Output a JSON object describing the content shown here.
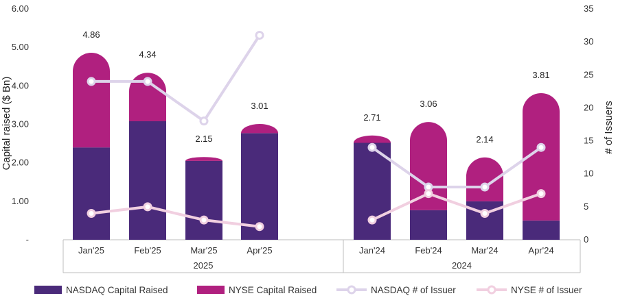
{
  "chart_data": {
    "type": "bar",
    "stacked": true,
    "groups": [
      {
        "name": "2025",
        "categories": [
          "Jan'25",
          "Feb'25",
          "Mar'25",
          "Apr'25"
        ]
      },
      {
        "name": "2024",
        "categories": [
          "Jan'24",
          "Feb'24",
          "Mar'24",
          "Apr'24"
        ]
      }
    ],
    "categories": [
      "Jan'25",
      "Feb'25",
      "Mar'25",
      "Apr'25",
      "Jan'24",
      "Feb'24",
      "Mar'24",
      "Apr'24"
    ],
    "series": [
      {
        "name": "NASDAQ Capital Raised",
        "kind": "bar",
        "axis": "left",
        "color": "#4a2a7a",
        "values": [
          2.4,
          3.08,
          2.05,
          2.77,
          2.52,
          0.77,
          1.0,
          0.5
        ]
      },
      {
        "name": "NYSE Capital Raised",
        "kind": "bar",
        "axis": "left",
        "color": "#b0207f",
        "values": [
          2.46,
          1.26,
          0.1,
          0.24,
          0.19,
          2.29,
          1.14,
          3.31
        ]
      },
      {
        "name": "NASDAQ # of Issuer",
        "kind": "line",
        "axis": "right",
        "color": "#ddd3ea",
        "values": [
          24,
          24,
          18,
          31,
          14,
          8,
          8,
          14
        ]
      },
      {
        "name": "NYSE # of Issuer",
        "kind": "line",
        "axis": "right",
        "color": "#f1cfe0",
        "values": [
          4,
          5,
          3,
          2,
          3,
          7,
          4,
          7
        ]
      }
    ],
    "totals": [
      "4.86",
      "4.34",
      "2.15",
      "3.01",
      "2.71",
      "3.06",
      "2.14",
      "3.81"
    ],
    "y_left": {
      "label": "Capital raised ($ Bn)",
      "range": [
        0,
        6
      ],
      "ticks": [
        "-",
        "1.00",
        "2.00",
        "3.00",
        "4.00",
        "5.00",
        "6.00"
      ]
    },
    "y_right": {
      "label": "# of Issuers",
      "range": [
        0,
        35
      ],
      "ticks": [
        "0",
        "5",
        "10",
        "15",
        "20",
        "25",
        "30",
        "35"
      ]
    },
    "grid": false,
    "legend_position": "bottom"
  }
}
